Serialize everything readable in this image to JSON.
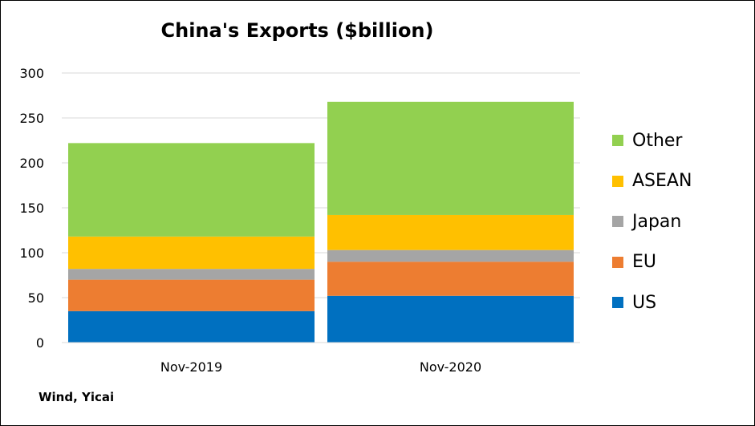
{
  "title": "China's Exports ($billion)",
  "source": "Wind, Yicai",
  "chart_data": {
    "type": "bar",
    "stacked": true,
    "title": "China's Exports ($billion)",
    "xlabel": "",
    "ylabel": "",
    "categories": [
      "Nov-2019",
      "Nov-2020"
    ],
    "ylim": [
      0,
      300
    ],
    "yticks": [
      0,
      50,
      100,
      150,
      200,
      250,
      300
    ],
    "grid": true,
    "legend_position": "right",
    "series": [
      {
        "name": "US",
        "color": "#0070C0",
        "values": [
          35,
          52
        ]
      },
      {
        "name": "EU",
        "color": "#ED7D31",
        "values": [
          35,
          38
        ]
      },
      {
        "name": "Japan",
        "color": "#A5A5A5",
        "values": [
          12,
          13
        ]
      },
      {
        "name": "ASEAN",
        "color": "#FFC000",
        "values": [
          36,
          39
        ]
      },
      {
        "name": "Other",
        "color": "#92D050",
        "values": [
          104,
          126
        ]
      }
    ]
  }
}
